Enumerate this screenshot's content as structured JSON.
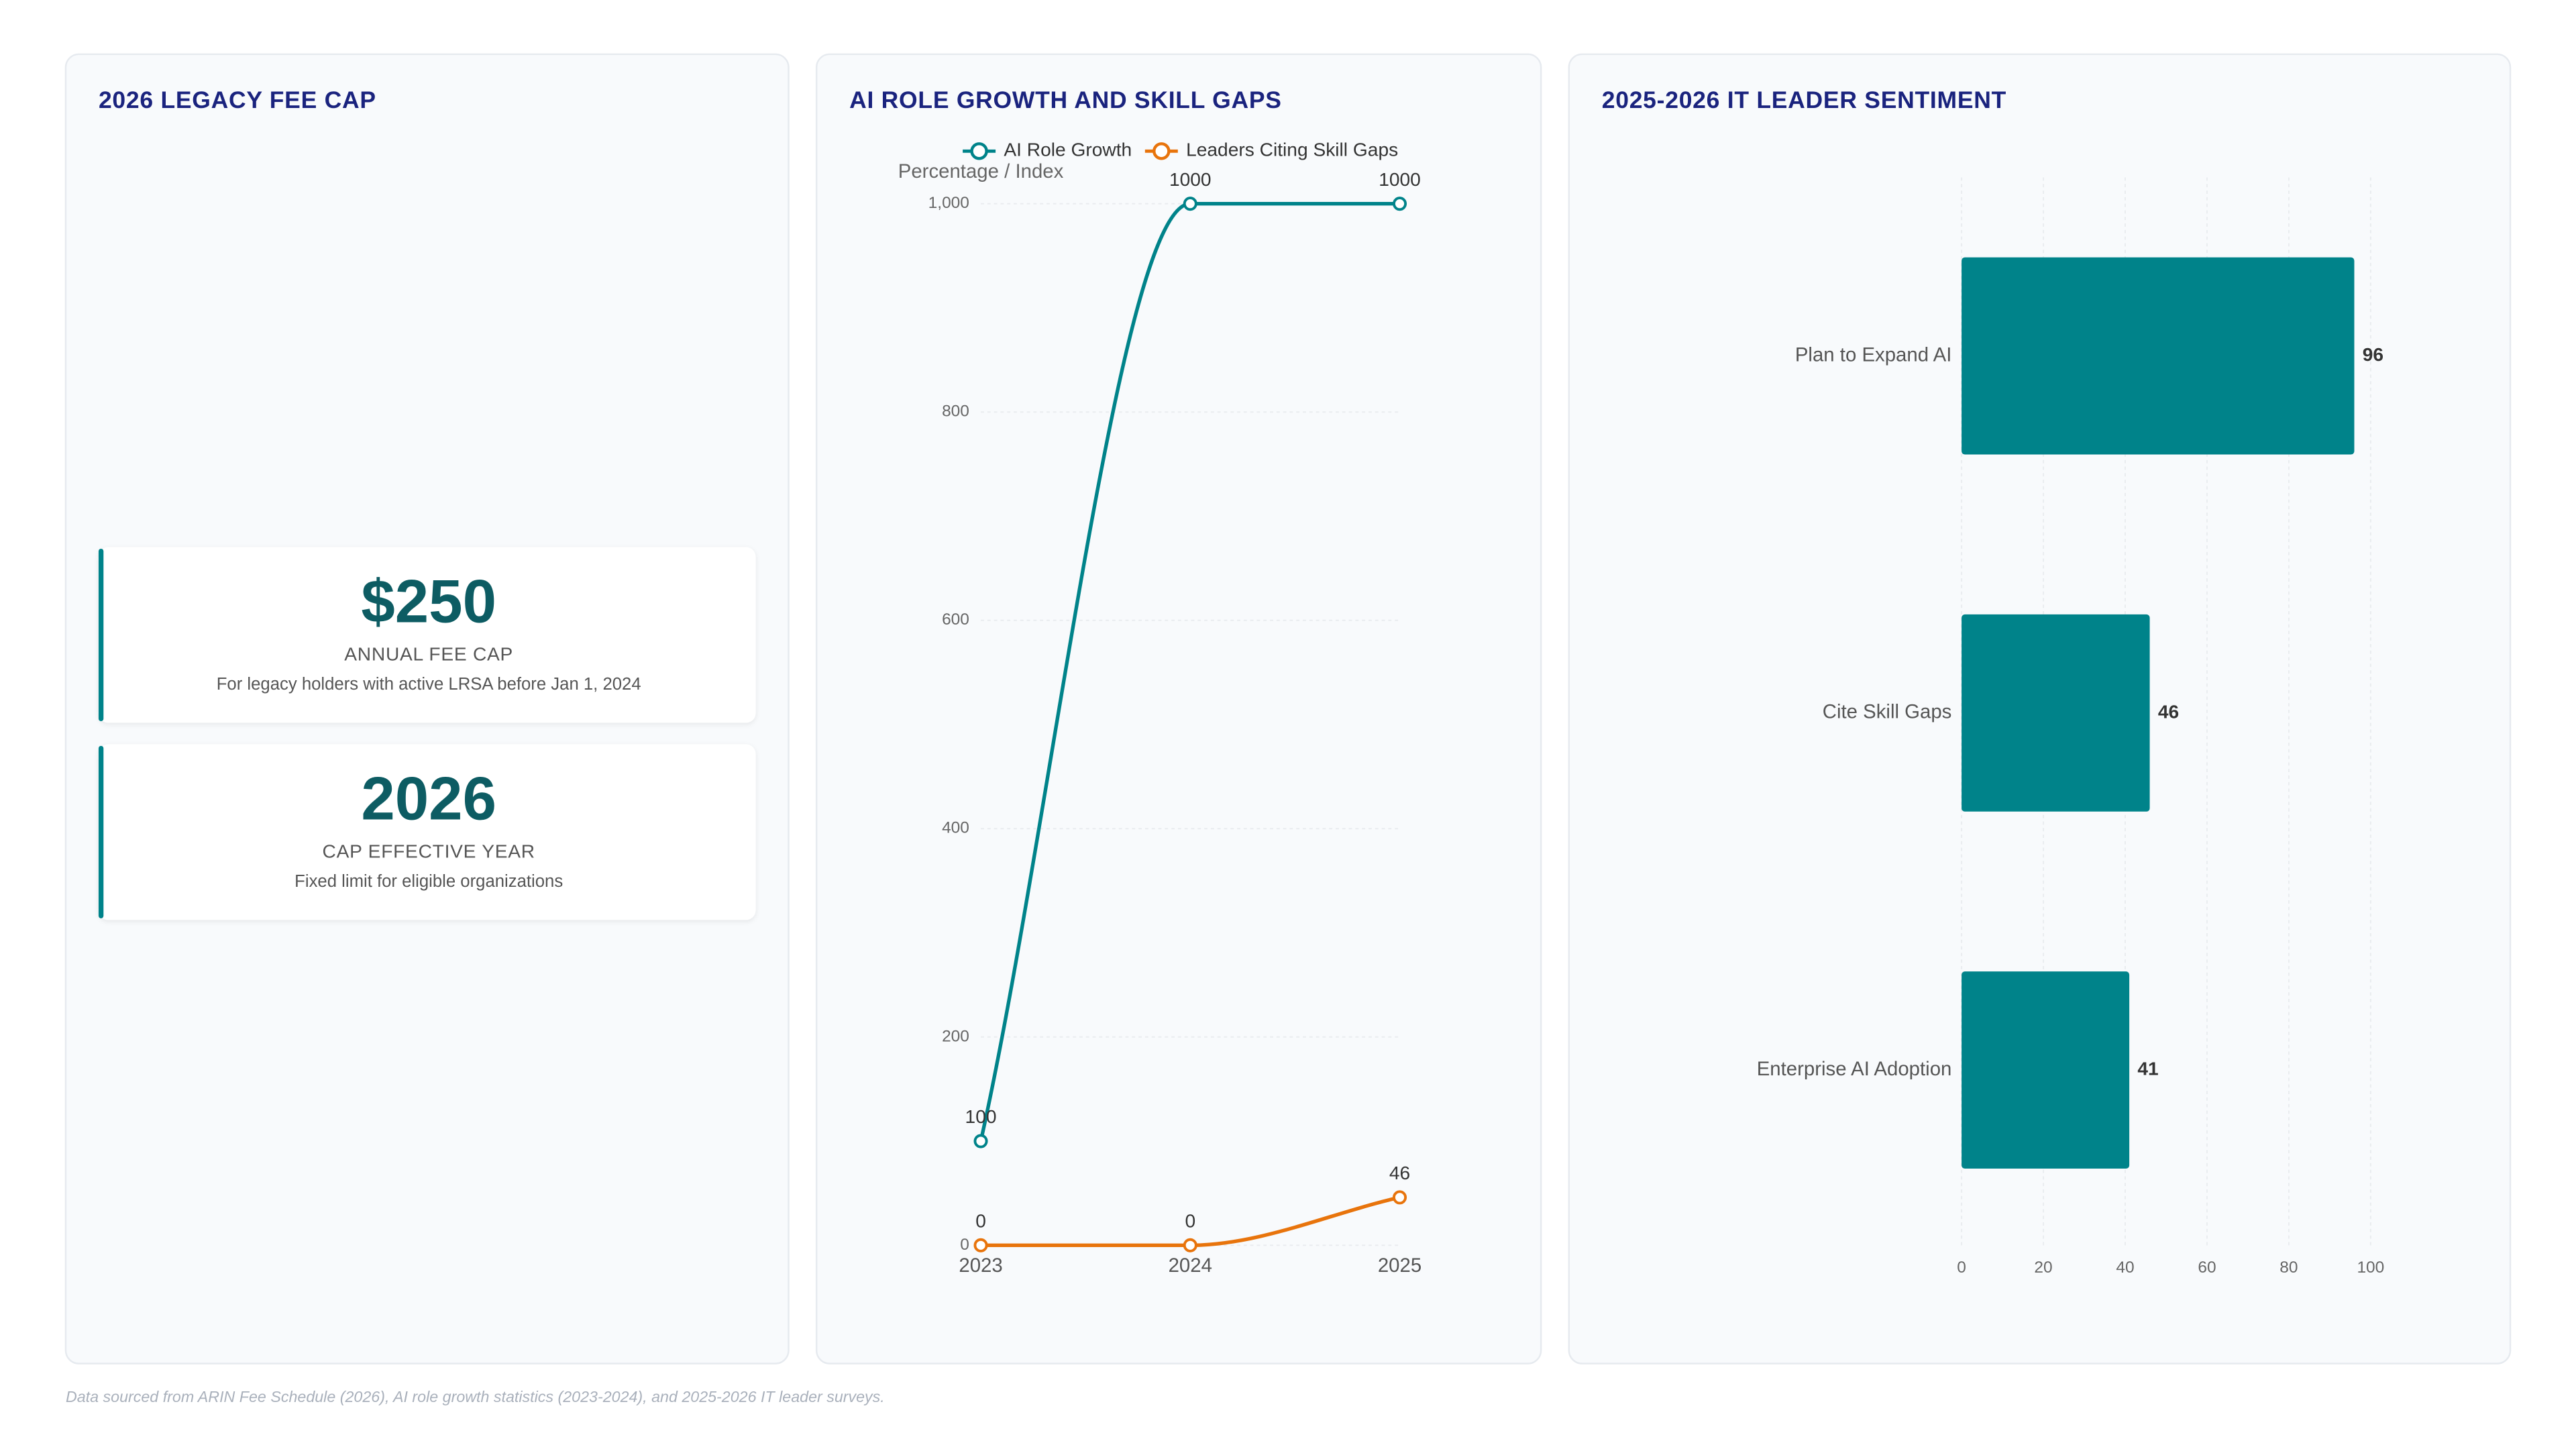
{
  "kpi_panel": {
    "title": "2026 LEGACY FEE CAP",
    "cards": [
      {
        "value": "$250",
        "label": "ANNUAL FEE CAP",
        "note": "For legacy holders with active LRSA before Jan 1, 2024"
      },
      {
        "value": "2026",
        "label": "CAP EFFECTIVE YEAR",
        "note": "Fixed limit for eligible organizations"
      }
    ]
  },
  "chart_data": [
    {
      "type": "line",
      "title": "AI ROLE GROWTH AND SKILL GAPS",
      "y_label": "Percentage / Index",
      "categories": [
        "2023",
        "2024",
        "2025"
      ],
      "series": [
        {
          "name": "AI Role Growth",
          "color": "#00838a",
          "values": [
            100,
            1000,
            1000
          ]
        },
        {
          "name": "Leaders Citing Skill Gaps",
          "color": "#e8740c",
          "values": [
            0,
            0,
            46
          ]
        }
      ],
      "ylim": [
        0,
        1000
      ],
      "yticks": [
        0,
        200,
        400,
        600,
        800,
        {
          "value": 1000,
          "label": "1,000"
        }
      ],
      "grid": true,
      "legend": "top"
    },
    {
      "type": "bar",
      "title": "2025-2026 IT LEADER SENTIMENT",
      "horizontal": true,
      "categories": [
        "Plan to Expand AI",
        "Cite Skill Gaps",
        "Enterprise AI Adoption"
      ],
      "values": [
        96,
        46,
        41
      ],
      "color": "#00838a",
      "xlim": [
        0,
        100
      ],
      "xticks": [
        0,
        20,
        40,
        60,
        80,
        100
      ],
      "grid": true
    }
  ],
  "footer": "Data sourced from ARIN Fee Schedule (2026), AI role growth statistics (2023-2024), and 2025-2026 IT leader surveys."
}
